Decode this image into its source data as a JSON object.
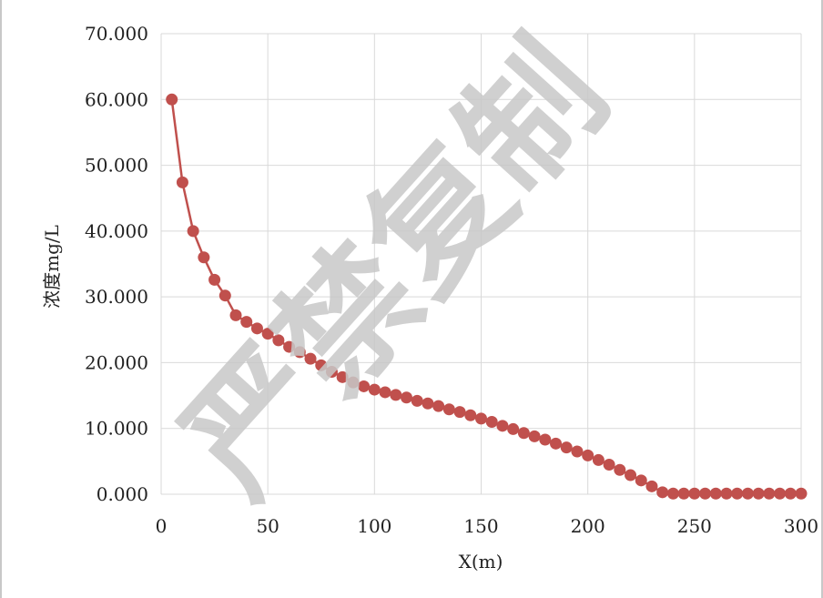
{
  "chart_data": {
    "type": "line",
    "xlabel": "X(m)",
    "ylabel": "浓度mg/L",
    "xlim": [
      0,
      300
    ],
    "ylim": [
      0,
      70
    ],
    "x_ticks": [
      0,
      50,
      100,
      150,
      200,
      250,
      300
    ],
    "y_ticks": [
      "0.000",
      "10.000",
      "20.000",
      "30.000",
      "40.000",
      "50.000",
      "60.000",
      "70.000"
    ],
    "grid": true,
    "legend": "none",
    "series": [
      {
        "color": "#c0504d",
        "marker": "circle",
        "x": [
          5,
          10,
          15,
          20,
          25,
          30,
          35,
          40,
          45,
          50,
          55,
          60,
          65,
          70,
          75,
          80,
          85,
          90,
          95,
          100,
          105,
          110,
          115,
          120,
          125,
          130,
          135,
          140,
          145,
          150,
          155,
          160,
          165,
          170,
          175,
          180,
          185,
          190,
          195,
          200,
          205,
          210,
          215,
          220,
          225,
          230,
          235,
          240,
          245,
          250,
          255,
          260,
          265,
          270,
          275,
          280,
          285,
          290,
          295,
          300
        ],
        "y": [
          60.0,
          47.4,
          40.0,
          36.0,
          32.6,
          30.2,
          27.2,
          26.2,
          25.2,
          24.4,
          23.4,
          22.4,
          21.6,
          20.6,
          19.6,
          18.6,
          17.8,
          17.0,
          16.4,
          15.9,
          15.5,
          15.1,
          14.7,
          14.2,
          13.8,
          13.4,
          12.9,
          12.5,
          12.0,
          11.5,
          11.0,
          10.4,
          9.9,
          9.3,
          8.8,
          8.3,
          7.7,
          7.1,
          6.5,
          5.9,
          5.2,
          4.5,
          3.7,
          2.9,
          2.1,
          1.2,
          0.3,
          0.1,
          0.1,
          0.1,
          0.1,
          0.1,
          0.1,
          0.1,
          0.1,
          0.1,
          0.1,
          0.1,
          0.1,
          0.1
        ]
      }
    ]
  },
  "watermark": {
    "text": "严禁复制",
    "color": "#c8c8c8"
  }
}
